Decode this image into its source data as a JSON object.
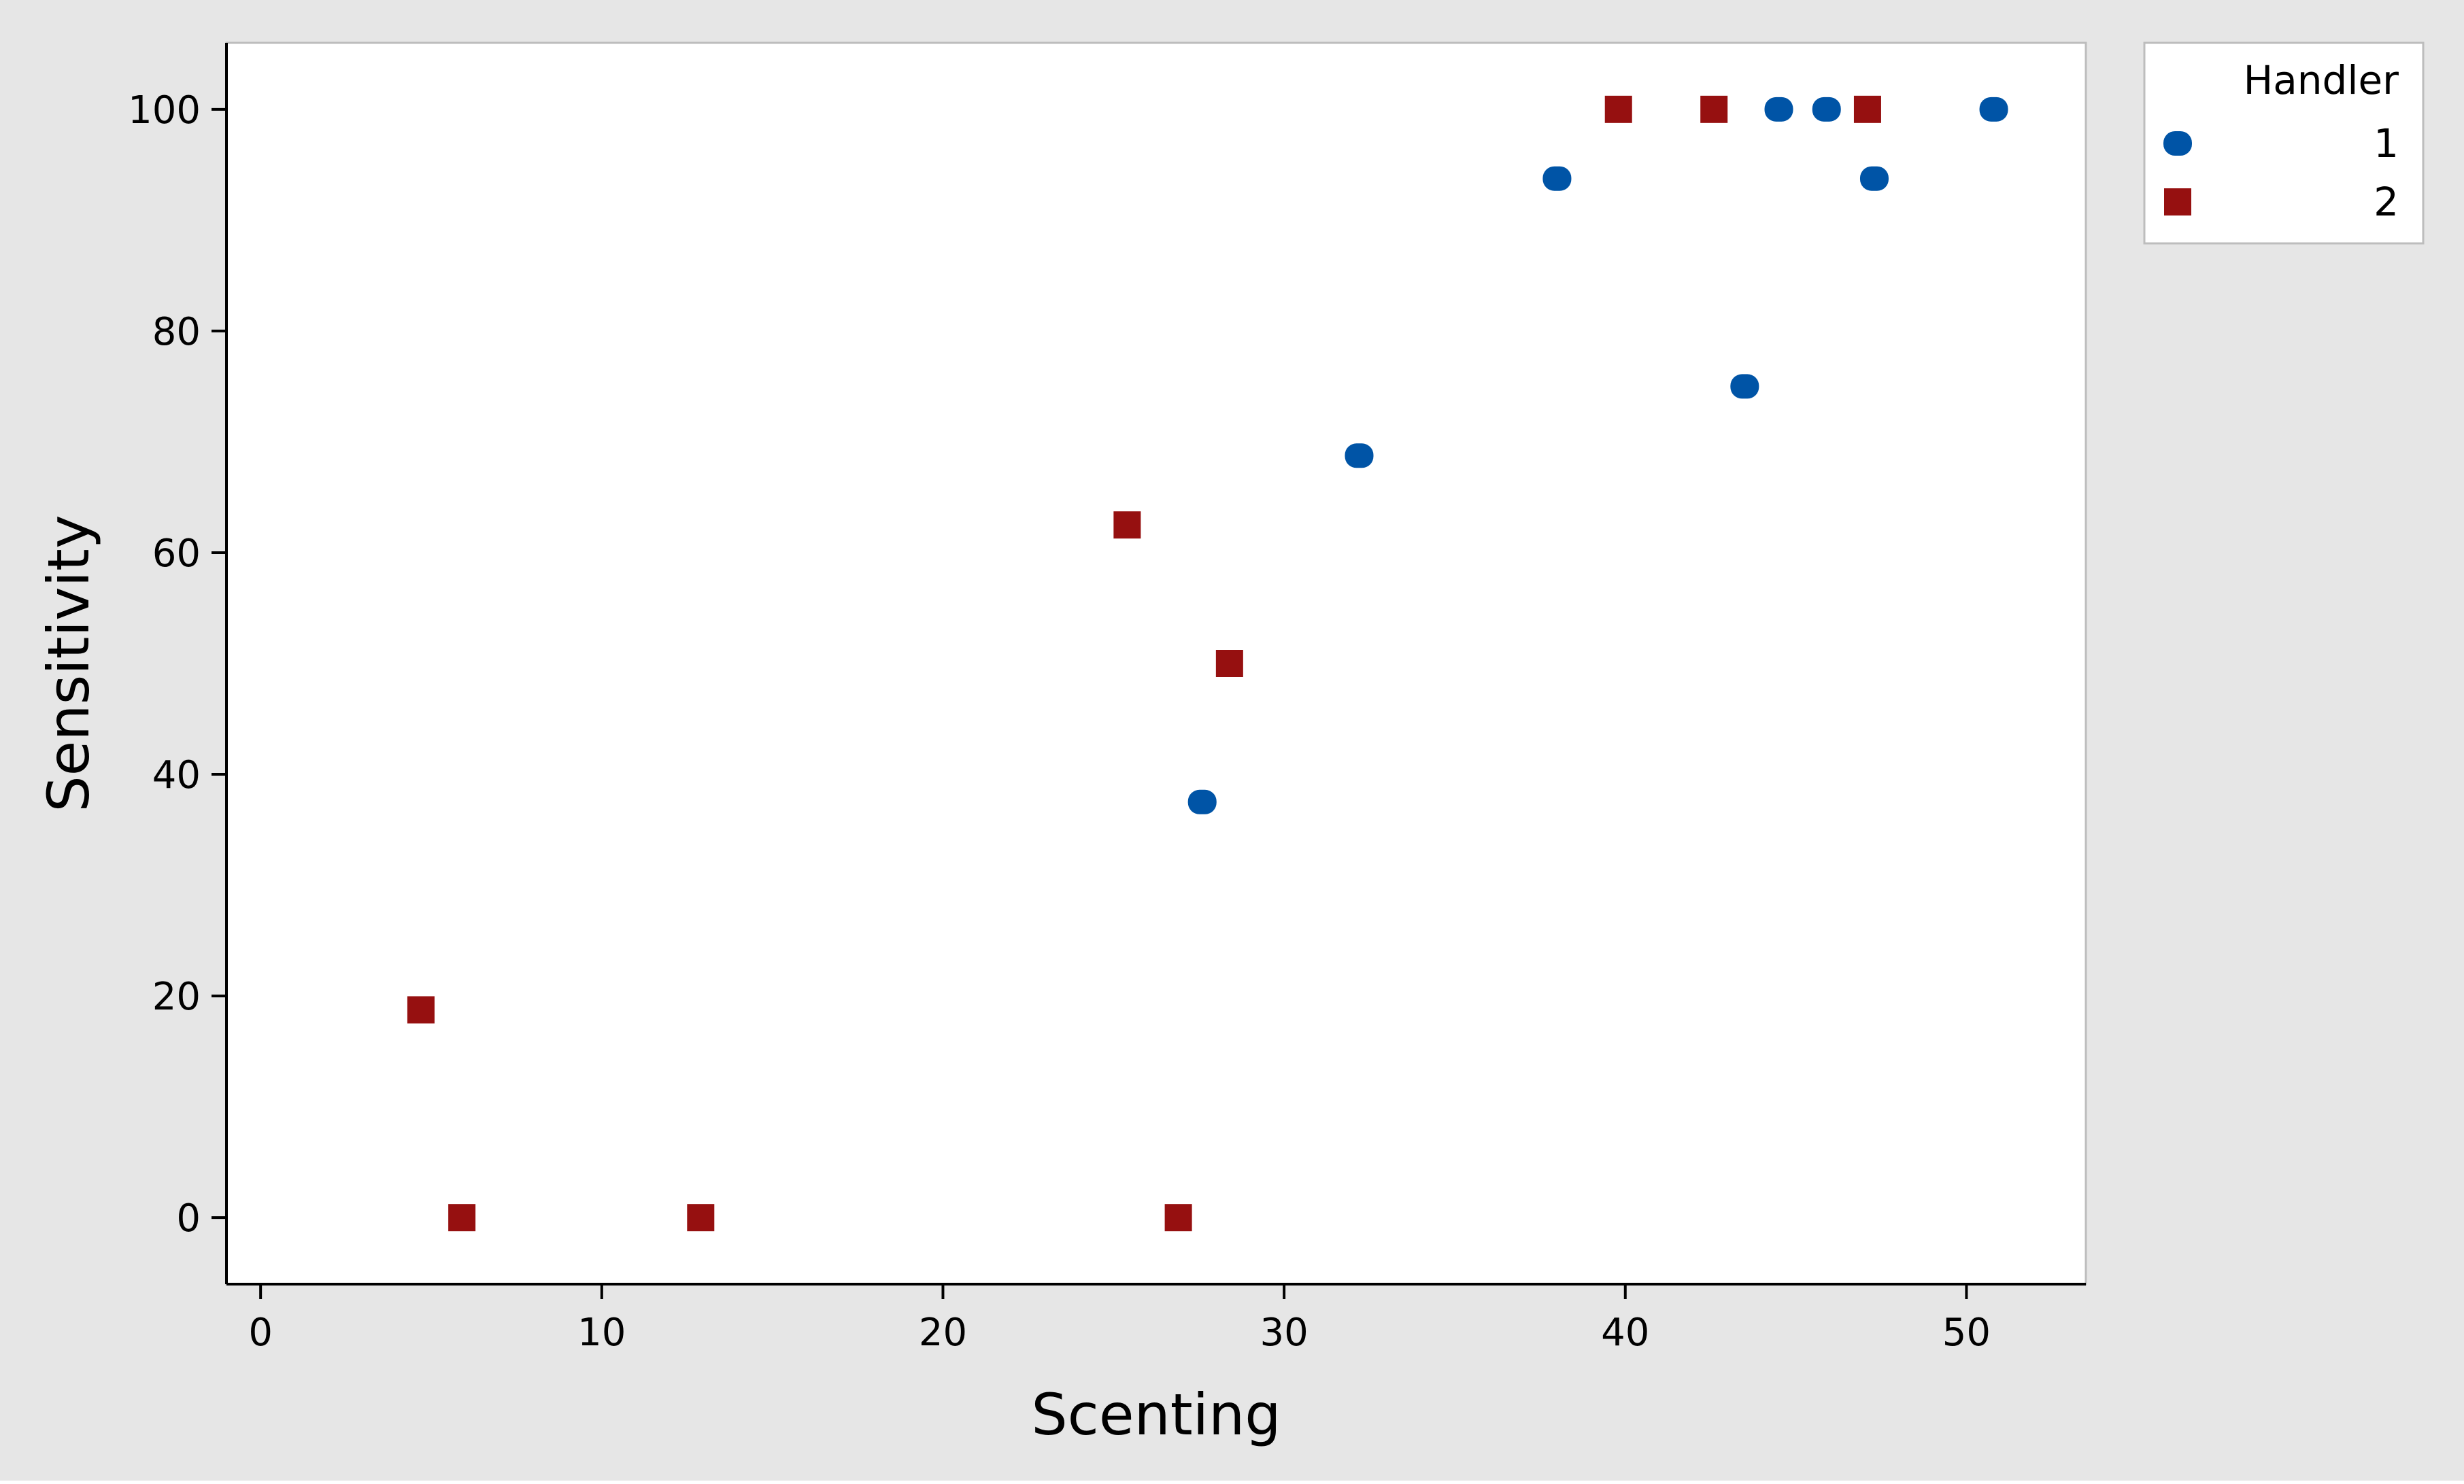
{
  "chart_data": {
    "type": "scatter",
    "title": "",
    "xlabel": "Scenting",
    "ylabel": "Sensitivity",
    "xlim": [
      -1,
      53.5
    ],
    "ylim": [
      -6,
      106
    ],
    "x_ticks": [
      0,
      10,
      20,
      30,
      40,
      50
    ],
    "y_ticks": [
      0,
      20,
      40,
      60,
      80,
      100
    ],
    "grid": false,
    "legend": {
      "title": "Handler",
      "position": "top-right-outside"
    },
    "series": [
      {
        "name": "1",
        "marker": "circle",
        "color": "#0054A6",
        "points": [
          {
            "x": 27.6,
            "y": 37.5
          },
          {
            "x": 32.2,
            "y": 68.75
          },
          {
            "x": 38.0,
            "y": 93.75
          },
          {
            "x": 43.5,
            "y": 75.0
          },
          {
            "x": 44.5,
            "y": 100
          },
          {
            "x": 45.9,
            "y": 100
          },
          {
            "x": 47.3,
            "y": 93.75
          },
          {
            "x": 50.8,
            "y": 100
          }
        ]
      },
      {
        "name": "2",
        "marker": "square",
        "color": "#961010",
        "points": [
          {
            "x": 4.7,
            "y": 18.75
          },
          {
            "x": 5.9,
            "y": 0
          },
          {
            "x": 12.9,
            "y": 0
          },
          {
            "x": 25.4,
            "y": 62.5
          },
          {
            "x": 26.9,
            "y": 0
          },
          {
            "x": 28.4,
            "y": 50.0
          },
          {
            "x": 39.8,
            "y": 100
          },
          {
            "x": 42.6,
            "y": 100
          },
          {
            "x": 47.1,
            "y": 100
          }
        ]
      }
    ]
  },
  "colors": {
    "outer_background": "#E6E6E6",
    "plot_background": "#FFFFFF",
    "axis": "#000000",
    "frame": "#BDBDBD"
  }
}
